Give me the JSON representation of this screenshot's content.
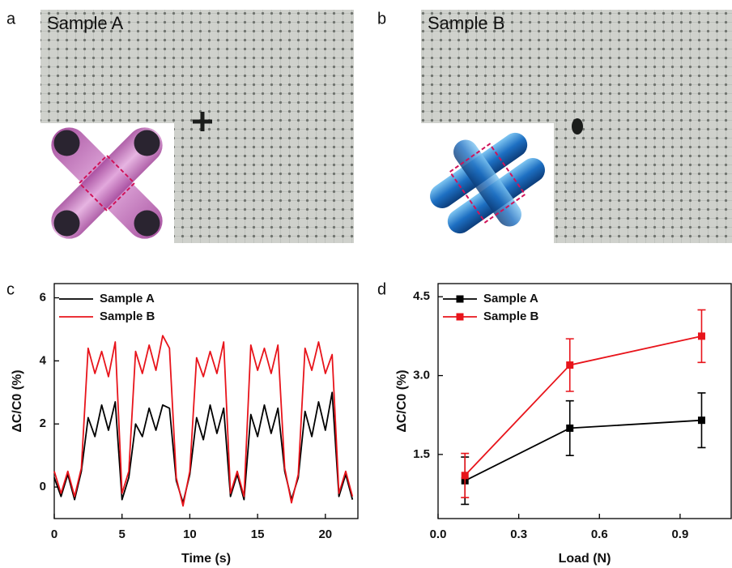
{
  "panel_labels": [
    "a",
    "b",
    "c",
    "d"
  ],
  "photos": [
    {
      "label": "Sample A"
    },
    {
      "label": "Sample B"
    }
  ],
  "chart_data": [
    {
      "type": "line",
      "xlabel": "Time (s)",
      "ylabel": "ΔC/C0 (%)",
      "x": [
        0,
        0.5,
        1,
        1.5,
        2,
        2.5,
        3,
        3.5,
        4,
        4.5,
        5,
        5.5,
        6,
        6.5,
        7,
        7.5,
        8,
        8.5,
        9,
        9.5,
        10,
        10.5,
        11,
        11.5,
        12,
        12.5,
        13,
        13.5,
        14,
        14.5,
        15,
        15.5,
        16,
        16.5,
        17,
        17.5,
        18,
        18.5,
        19,
        19.5,
        20,
        20.5,
        21,
        21.5,
        22
      ],
      "series": [
        {
          "name": "Sample A",
          "color": "#000000",
          "values": [
            0.3,
            -0.3,
            0.4,
            -0.4,
            0.5,
            2.2,
            1.6,
            2.6,
            1.8,
            2.7,
            -0.4,
            0.3,
            2.0,
            1.6,
            2.5,
            1.8,
            2.6,
            2.5,
            0.2,
            -0.5,
            0.4,
            2.2,
            1.5,
            2.6,
            1.7,
            2.5,
            -0.3,
            0.4,
            -0.4,
            2.3,
            1.6,
            2.6,
            1.7,
            2.5,
            0.5,
            -0.4,
            0.3,
            2.4,
            1.6,
            2.7,
            1.8,
            3.0,
            -0.3,
            0.4,
            -0.4
          ]
        },
        {
          "name": "Sample B",
          "color": "#e8141b",
          "values": [
            0.5,
            -0.2,
            0.5,
            -0.3,
            0.6,
            4.4,
            3.6,
            4.3,
            3.5,
            4.6,
            -0.2,
            0.5,
            4.3,
            3.6,
            4.5,
            3.7,
            4.8,
            4.4,
            0.3,
            -0.6,
            0.5,
            4.1,
            3.5,
            4.3,
            3.6,
            4.6,
            -0.2,
            0.5,
            -0.3,
            4.5,
            3.7,
            4.4,
            3.6,
            4.5,
            0.6,
            -0.5,
            0.4,
            4.4,
            3.7,
            4.6,
            3.6,
            4.2,
            -0.2,
            0.5,
            -0.3
          ]
        }
      ],
      "xlim": [
        0,
        22.4
      ],
      "xticks": [
        0,
        5,
        10,
        15,
        20
      ],
      "ylim": [
        -1,
        6.45
      ],
      "yticks": [
        0,
        2,
        4,
        6
      ],
      "legend": "upper left",
      "markers": "none"
    },
    {
      "type": "line",
      "xlabel": "Load (N)",
      "ylabel": "ΔC/C0 (%)",
      "x": [
        0.1,
        0.49,
        0.98
      ],
      "series": [
        {
          "name": "Sample A",
          "color": "#000000",
          "values": [
            1.0,
            2.0,
            2.15
          ],
          "errors": [
            0.45,
            0.52,
            0.52
          ]
        },
        {
          "name": "Sample B",
          "color": "#e8141b",
          "values": [
            1.1,
            3.2,
            3.75
          ],
          "errors": [
            0.42,
            0.5,
            0.5
          ]
        }
      ],
      "xlim": [
        0,
        1.09
      ],
      "xticks": [
        {
          "value": 0,
          "label": "0.0"
        },
        0.3,
        0.6,
        0.9
      ],
      "ylim": [
        0.28,
        4.75
      ],
      "yticks": [
        1.5,
        {
          "value": 3,
          "label": "3.0"
        },
        4.5
      ],
      "legend": "upper left",
      "markers": "square"
    }
  ]
}
